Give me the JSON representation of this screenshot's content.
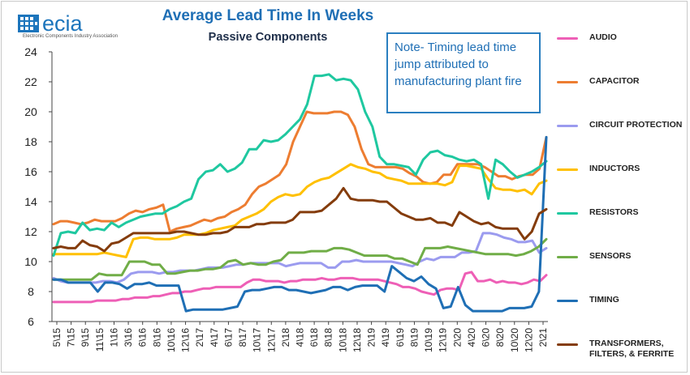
{
  "header": {
    "logo_text": "ecia",
    "logo_subtitle": "Electronic Components Industry Association",
    "title": "Average Lead Time In Weeks",
    "subtitle": "Passive Components",
    "note": "Note- Timing lead time jump attributed to manufacturing plant fire"
  },
  "colors": {
    "title": "#1f6fb5",
    "brand": "#1c75bc",
    "axis": "#333333"
  },
  "chart_data": {
    "type": "line",
    "title": "Average Lead Time In Weeks",
    "subtitle": "Passive Components",
    "xlabel": "",
    "ylabel": "",
    "ylim": [
      6,
      24
    ],
    "yticks": [
      6,
      8,
      10,
      12,
      14,
      16,
      18,
      20,
      22,
      24
    ],
    "grid": false,
    "legend_position": "right",
    "x_tick_labels": [
      "5\\15",
      "7\\15",
      "9\\15",
      "11\\15",
      "1\\16",
      "3\\16",
      "6\\16",
      "8\\16",
      "10\\16",
      "12\\16",
      "2\\17",
      "4\\17",
      "6\\17",
      "8\\17",
      "10\\17",
      "12\\17",
      "2\\18",
      "4\\18",
      "6\\18",
      "8\\18",
      "10\\18",
      "12\\18",
      "2\\19",
      "4\\19",
      "6\\19",
      "8\\19",
      "10\\19",
      "12\\19",
      "2\\20",
      "4\\20",
      "6\\20",
      "8\\20",
      "10\\20",
      "12\\20",
      "2\\21"
    ],
    "series": [
      {
        "name": "AUDIO",
        "color": "#ee5fb6",
        "values": [
          7.3,
          7.3,
          7.3,
          7.3,
          7.3,
          7.3,
          7.3,
          7.4,
          7.4,
          7.4,
          7.4,
          7.5,
          7.5,
          7.6,
          7.6,
          7.6,
          7.7,
          7.7,
          7.8,
          7.9,
          7.9,
          8.0,
          8.0,
          8.1,
          8.2,
          8.2,
          8.3,
          8.3,
          8.3,
          8.3,
          8.3,
          8.6,
          8.8,
          8.8,
          8.7,
          8.7,
          8.7,
          8.6,
          8.7,
          8.7,
          8.8,
          8.8,
          8.8,
          8.9,
          8.8,
          8.8,
          8.9,
          8.9,
          8.9,
          8.8,
          8.8,
          8.8,
          8.8,
          8.7,
          8.6,
          8.5,
          8.3,
          8.3,
          8.2,
          8.0,
          7.9,
          7.8,
          8.1,
          8.2,
          8.2,
          8.1,
          9.2,
          9.3,
          8.7,
          8.7,
          8.8,
          8.6,
          8.7,
          8.6,
          8.6,
          8.5,
          8.6,
          8.8,
          8.7,
          9.1
        ]
      },
      {
        "name": "CAPACITOR",
        "color": "#ed7d31",
        "values": [
          12.5,
          12.7,
          12.7,
          12.6,
          12.5,
          12.6,
          12.8,
          12.7,
          12.7,
          12.7,
          12.9,
          13.2,
          13.4,
          13.3,
          13.5,
          13.6,
          13.8,
          12.0,
          12.2,
          12.3,
          12.4,
          12.6,
          12.8,
          12.7,
          12.9,
          13.0,
          13.3,
          13.5,
          13.8,
          14.5,
          15.0,
          15.2,
          15.5,
          15.8,
          16.5,
          18.0,
          19.0,
          20.0,
          19.9,
          19.9,
          19.9,
          20.0,
          20.0,
          19.8,
          19.0,
          17.5,
          16.5,
          16.3,
          16.3,
          16.3,
          16.3,
          16.2,
          15.9,
          15.7,
          15.3,
          15.2,
          15.3,
          15.8,
          15.8,
          16.5,
          16.5,
          16.5,
          16.5,
          16.3,
          16.0,
          15.7,
          15.7,
          15.5,
          15.7,
          15.8,
          15.8,
          16.2,
          18.3
        ]
      },
      {
        "name": "CIRCUIT PROTECTION",
        "color": "#9b9bef",
        "values": [
          8.9,
          8.7,
          8.6,
          8.6,
          8.6,
          8.6,
          8.6,
          8.7,
          8.7,
          8.6,
          8.8,
          9.2,
          9.3,
          9.3,
          9.3,
          9.2,
          9.3,
          9.3,
          9.4,
          9.4,
          9.4,
          9.5,
          9.6,
          9.6,
          9.6,
          9.7,
          9.8,
          9.8,
          9.9,
          9.9,
          9.9,
          9.9,
          9.9,
          9.7,
          9.8,
          9.9,
          9.9,
          9.9,
          9.9,
          9.6,
          9.6,
          10.0,
          10.0,
          10.1,
          10.0,
          10.0,
          10.0,
          10.0,
          10.0,
          9.9,
          9.8,
          9.7,
          10.0,
          10.2,
          10.1,
          10.3,
          10.3,
          10.3,
          10.6,
          10.6,
          10.7,
          11.9,
          11.9,
          11.8,
          11.6,
          11.5,
          11.3,
          11.3,
          11.4,
          10.6,
          10.9
        ]
      },
      {
        "name": "INDUCTORS",
        "color": "#ffc000",
        "values": [
          10.5,
          10.5,
          10.5,
          10.5,
          10.5,
          10.5,
          10.5,
          10.6,
          10.5,
          10.4,
          10.3,
          11.5,
          11.6,
          11.6,
          11.5,
          11.5,
          11.5,
          11.6,
          11.8,
          11.8,
          11.8,
          11.9,
          12.1,
          12.2,
          12.3,
          12.4,
          12.8,
          13.0,
          13.2,
          13.5,
          14.0,
          14.3,
          14.5,
          14.4,
          14.5,
          15.0,
          15.3,
          15.5,
          15.6,
          15.9,
          16.2,
          16.5,
          16.3,
          16.2,
          16.0,
          15.9,
          15.6,
          15.5,
          15.4,
          15.2,
          15.2,
          15.2,
          15.2,
          15.2,
          15.1,
          15.3,
          16.4,
          16.4,
          16.3,
          16.2,
          15.5,
          14.9,
          14.8,
          14.8,
          14.7,
          14.8,
          14.5,
          15.2,
          15.4
        ]
      },
      {
        "name": "RESISTORS",
        "color": "#1fc8a0",
        "values": [
          10.4,
          11.9,
          12.0,
          11.9,
          12.6,
          12.1,
          12.2,
          12.1,
          12.6,
          12.3,
          12.6,
          12.8,
          13.0,
          13.1,
          13.2,
          13.2,
          13.5,
          13.7,
          14.0,
          14.2,
          15.5,
          16.0,
          16.1,
          16.5,
          16.0,
          16.2,
          16.6,
          17.5,
          17.5,
          18.1,
          18.0,
          18.1,
          18.5,
          19.0,
          19.5,
          20.5,
          22.4,
          22.4,
          22.5,
          22.1,
          22.2,
          22.1,
          21.5,
          20.0,
          19.0,
          17.0,
          16.5,
          16.5,
          16.4,
          16.3,
          15.8,
          16.8,
          17.3,
          17.4,
          17.1,
          17.0,
          16.8,
          16.7,
          16.8,
          16.5,
          14.2,
          16.8,
          16.5,
          16.0,
          15.6,
          15.8,
          16.0,
          16.3,
          16.7
        ]
      },
      {
        "name": "SENSORS",
        "color": "#70ad47",
        "values": [
          8.8,
          8.8,
          8.8,
          8.8,
          8.8,
          8.8,
          9.2,
          9.1,
          9.1,
          9.1,
          10.0,
          10.0,
          10.0,
          9.8,
          9.8,
          9.2,
          9.2,
          9.3,
          9.4,
          9.4,
          9.5,
          9.5,
          9.6,
          10.0,
          10.1,
          9.8,
          9.9,
          9.8,
          9.8,
          10.0,
          10.1,
          10.6,
          10.6,
          10.6,
          10.7,
          10.7,
          10.7,
          10.9,
          10.9,
          10.8,
          10.6,
          10.4,
          10.4,
          10.4,
          10.4,
          10.2,
          10.2,
          10.0,
          9.8,
          10.9,
          10.9,
          10.9,
          11.0,
          10.9,
          10.8,
          10.7,
          10.6,
          10.5,
          10.5,
          10.5,
          10.5,
          10.4,
          10.5,
          10.7,
          11.0,
          11.5
        ]
      },
      {
        "name": "TIMING",
        "color": "#1f6fb5",
        "values": [
          8.8,
          8.8,
          8.6,
          8.6,
          8.6,
          8.6,
          8.0,
          8.6,
          8.6,
          8.5,
          8.2,
          8.5,
          8.5,
          8.6,
          8.4,
          8.4,
          8.4,
          8.4,
          6.7,
          6.8,
          6.8,
          6.8,
          6.8,
          6.8,
          6.9,
          7.0,
          8.0,
          8.1,
          8.1,
          8.2,
          8.3,
          8.3,
          8.1,
          8.1,
          8.0,
          7.9,
          8.0,
          8.1,
          8.3,
          8.3,
          8.1,
          8.3,
          8.4,
          8.4,
          8.4,
          8.0,
          9.7,
          9.3,
          8.9,
          8.7,
          9.0,
          8.5,
          8.2,
          6.9,
          7.0,
          8.3,
          7.1,
          6.7,
          6.7,
          6.7,
          6.7,
          6.7,
          6.9,
          6.9,
          6.9,
          7.0,
          8.0,
          18.3
        ]
      },
      {
        "name": "TRANSFORMERS, FILTERS, & FERRITE",
        "color": "#843c0c",
        "values": [
          10.9,
          11.0,
          10.9,
          10.9,
          11.4,
          11.1,
          11.0,
          10.7,
          11.2,
          11.3,
          11.6,
          11.9,
          11.9,
          11.9,
          11.9,
          11.9,
          11.9,
          12.0,
          12.0,
          11.9,
          11.8,
          11.8,
          11.9,
          11.9,
          12.0,
          12.3,
          12.3,
          12.3,
          12.5,
          12.5,
          12.6,
          12.6,
          12.6,
          12.8,
          13.3,
          13.3,
          13.3,
          13.4,
          13.8,
          14.2,
          14.9,
          14.2,
          14.1,
          14.1,
          14.1,
          14.0,
          14.0,
          13.6,
          13.2,
          13.0,
          12.8,
          12.8,
          12.9,
          12.6,
          12.6,
          12.4,
          13.3,
          13.0,
          12.7,
          12.5,
          12.6,
          12.3,
          12.2,
          12.2,
          12.2,
          11.5,
          12.0,
          13.2,
          13.5
        ]
      }
    ]
  }
}
